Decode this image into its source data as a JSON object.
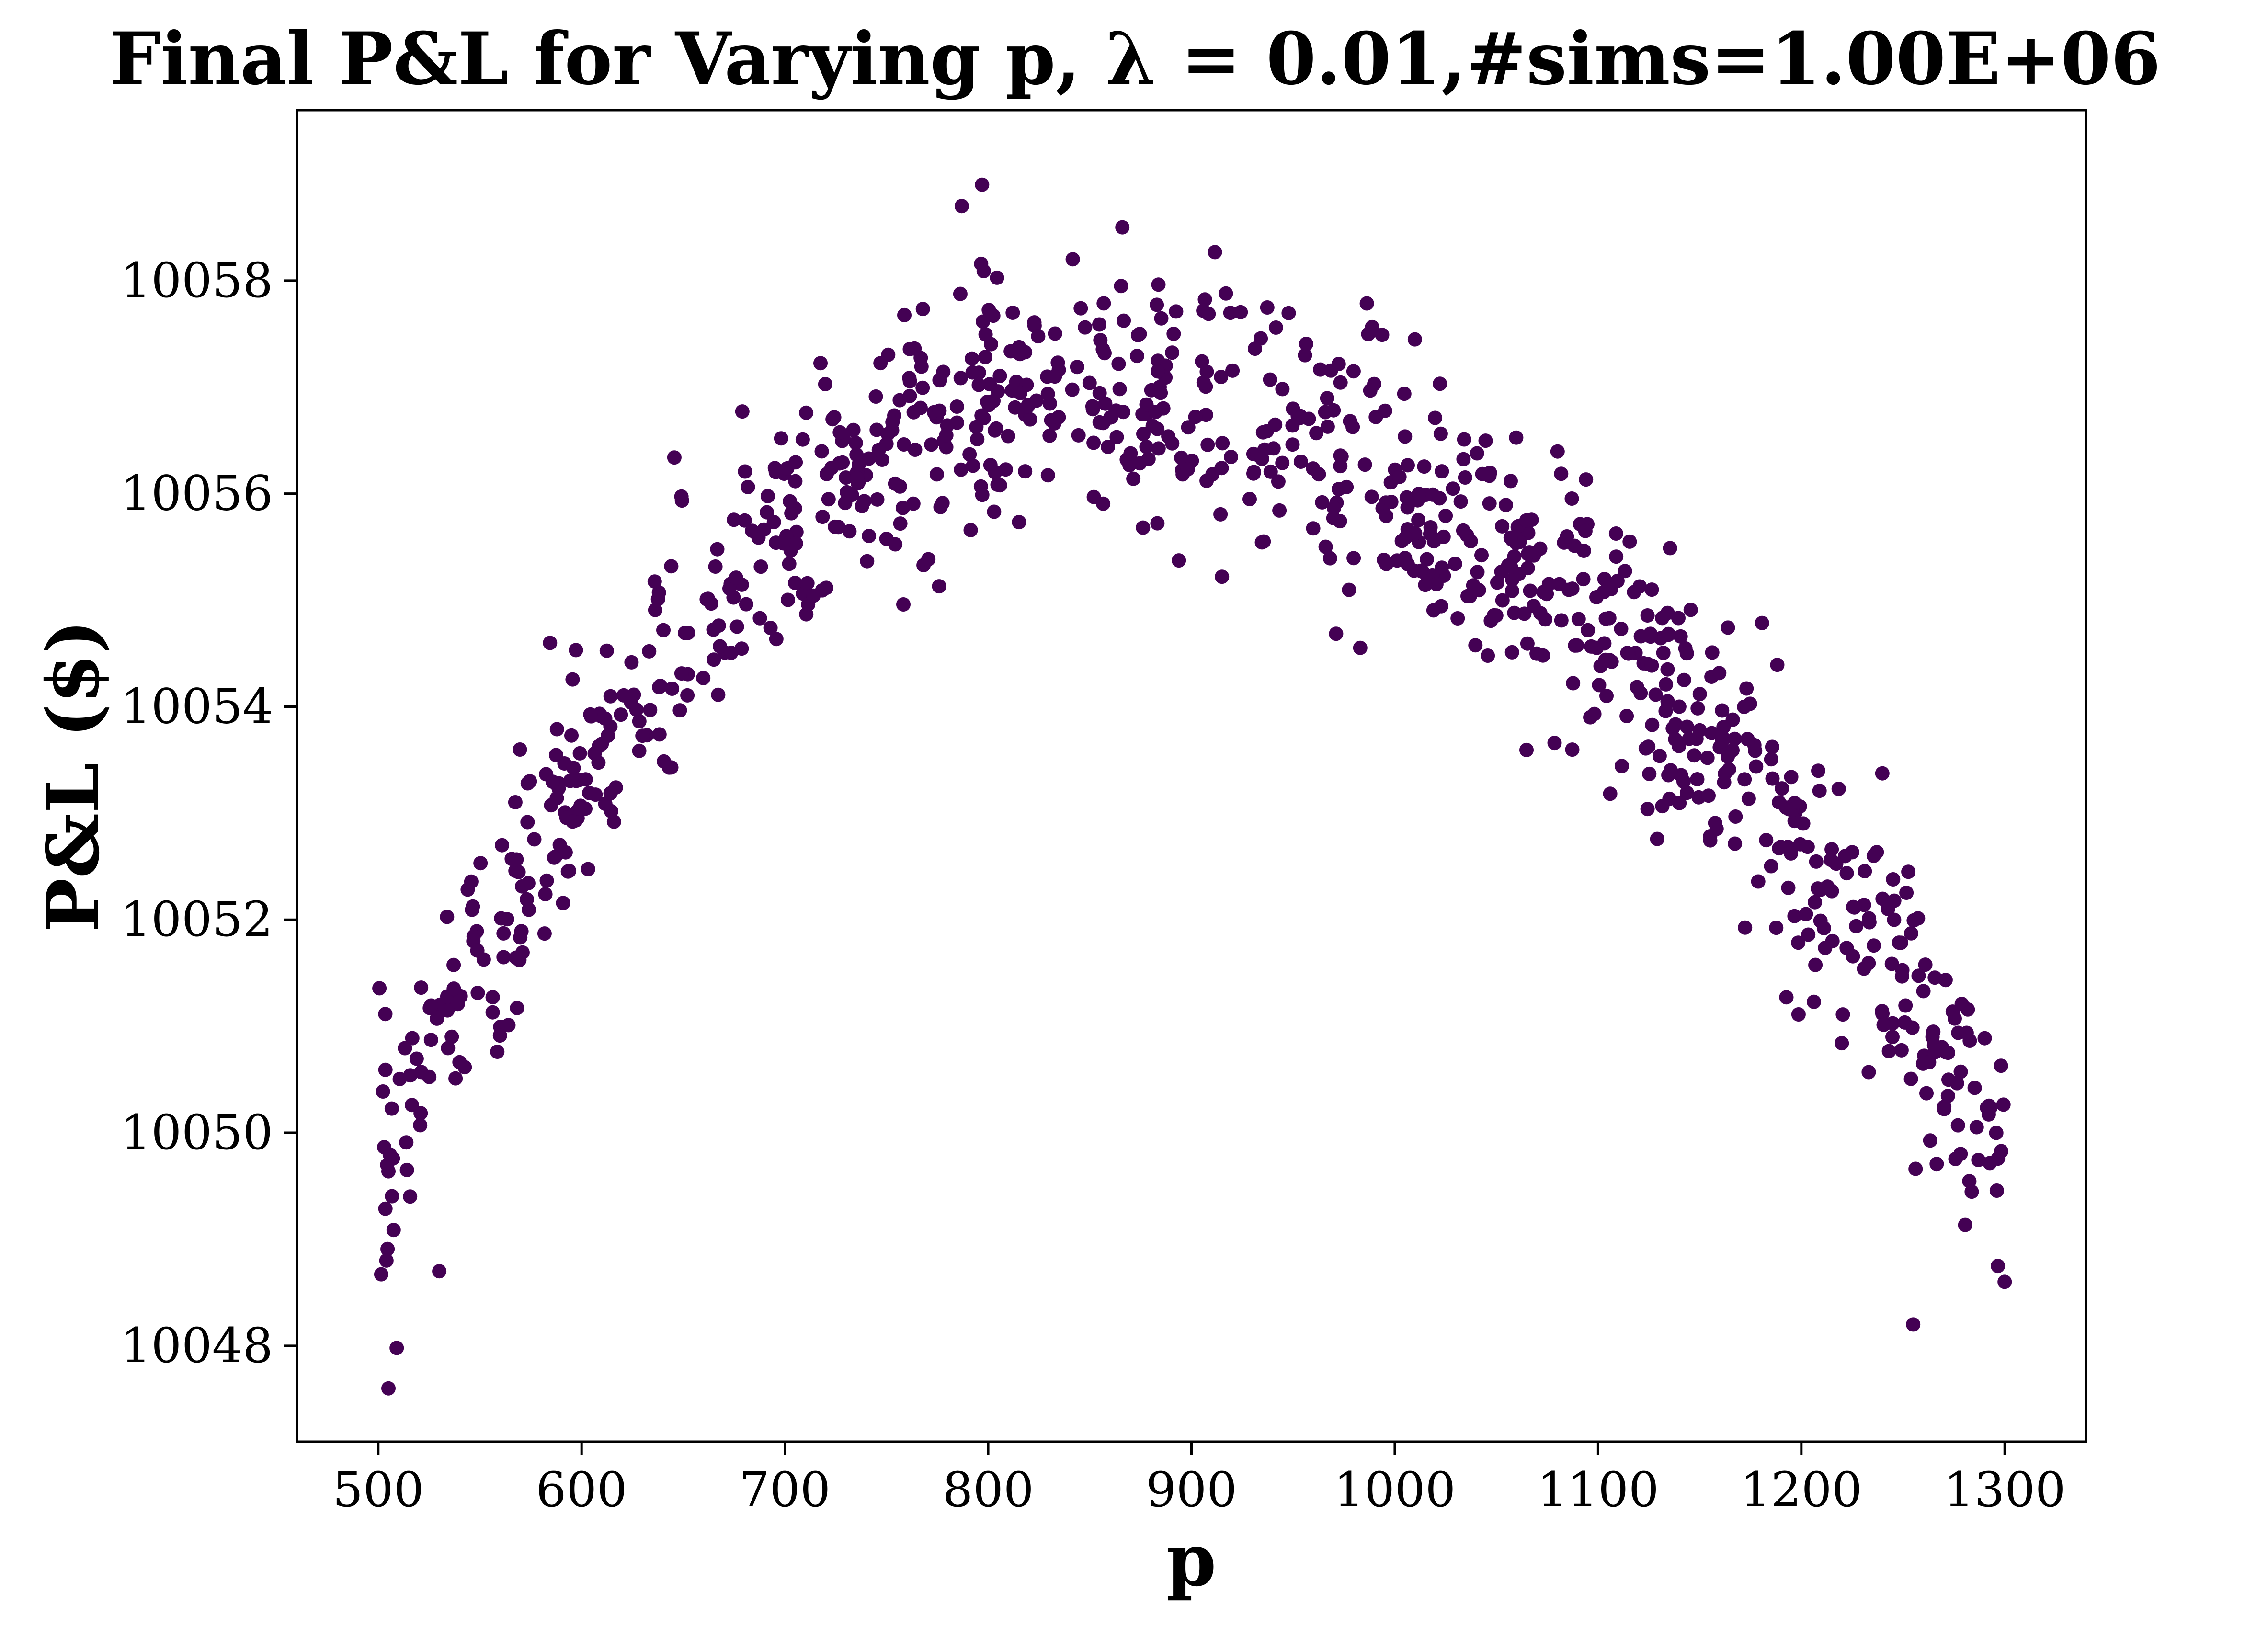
{
  "chart_data": {
    "type": "scatter",
    "title": "Final P&L for Varying p, λ = 0.01,#sims=1.00E+06",
    "xlabel": "p",
    "ylabel": "P&L ($)",
    "xlim": [
      460,
      1340
    ],
    "ylim": [
      10047.1,
      10059.6
    ],
    "x_ticks": [
      500,
      600,
      700,
      800,
      900,
      1000,
      1100,
      1200,
      1300
    ],
    "y_ticks": [
      10048,
      10050,
      10052,
      10054,
      10056,
      10058
    ],
    "x_tick_labels": [
      "500",
      "600",
      "700",
      "800",
      "900",
      "1000",
      "1100",
      "1200",
      "1300"
    ],
    "y_tick_labels": [
      "10048",
      "10050",
      "10052",
      "10054",
      "10056",
      "10058"
    ],
    "grid": false,
    "legend": "none",
    "marker_color": "#440154",
    "series": [
      {
        "x_range": [
          500,
          1300
        ],
        "n_points": 1000,
        "trend": "quadratic",
        "peak": {
          "x": 850,
          "y": 10056.9
        },
        "endpoints": {
          "x500": 10049.7,
          "x1300": 10049.9
        },
        "outliers": [
          {
            "x": 505,
            "y": 10047.6
          },
          {
            "x": 504,
            "y": 10048.8
          },
          {
            "x": 530,
            "y": 10048.7
          },
          {
            "x": 1255,
            "y": 10048.2
          },
          {
            "x": 1300,
            "y": 10048.6
          },
          {
            "x": 797,
            "y": 10058.9
          },
          {
            "x": 787,
            "y": 10058.7
          },
          {
            "x": 866,
            "y": 10058.5
          }
        ]
      }
    ]
  }
}
